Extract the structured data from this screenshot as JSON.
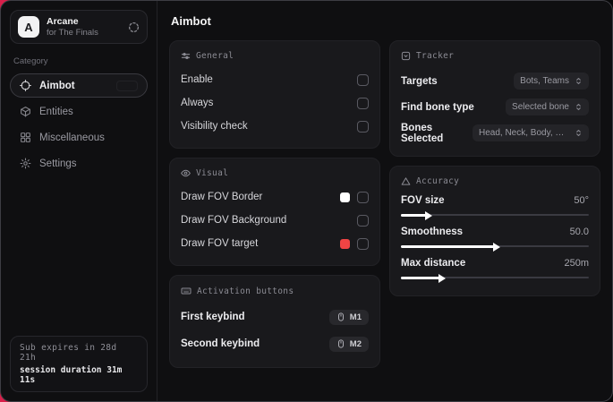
{
  "backdrop_accent": "#d91f4a",
  "sidebar": {
    "logo_letter": "A",
    "app_name": "Arcane",
    "app_subtitle": "for The Finals",
    "category_label": "Category",
    "items": [
      {
        "label": "Aimbot",
        "selected": true
      },
      {
        "label": "Entities",
        "selected": false
      },
      {
        "label": "Miscellaneous",
        "selected": false
      },
      {
        "label": "Settings",
        "selected": false
      }
    ],
    "footer": {
      "line1": "Sub expires in 28d 21h",
      "line2": "session duration 31m 11s"
    }
  },
  "main": {
    "title": "Aimbot",
    "general": {
      "title": "General",
      "rows": [
        {
          "label": "Enable",
          "checked": false
        },
        {
          "label": "Always",
          "checked": false
        },
        {
          "label": "Visibility check",
          "checked": false
        }
      ]
    },
    "visual": {
      "title": "Visual",
      "rows": [
        {
          "label": "Draw FOV Border",
          "swatch": "#ffffff",
          "checked": false
        },
        {
          "label": "Draw FOV Background",
          "checked": false
        },
        {
          "label": "Draw FOV target",
          "swatch": "#ef4444",
          "checked": false
        }
      ]
    },
    "activation": {
      "title": "Activation buttons",
      "rows": [
        {
          "label": "First keybind",
          "key": "M1"
        },
        {
          "label": "Second keybind",
          "key": "M2"
        }
      ]
    },
    "tracker": {
      "title": "Tracker",
      "rows": [
        {
          "label": "Targets",
          "value": "Bots, Teams"
        },
        {
          "label": "Find bone type",
          "value": "Selected bone"
        },
        {
          "label": "Bones Selected",
          "value": "Head, Neck, Body, Pe.."
        }
      ]
    },
    "accuracy": {
      "title": "Accuracy",
      "rows": [
        {
          "label": "FOV size",
          "value": "50°",
          "percent": 14
        },
        {
          "label": "Smoothness",
          "value": "50.0",
          "percent": 50
        },
        {
          "label": "Max distance",
          "value": "250m",
          "percent": 21
        }
      ]
    }
  }
}
